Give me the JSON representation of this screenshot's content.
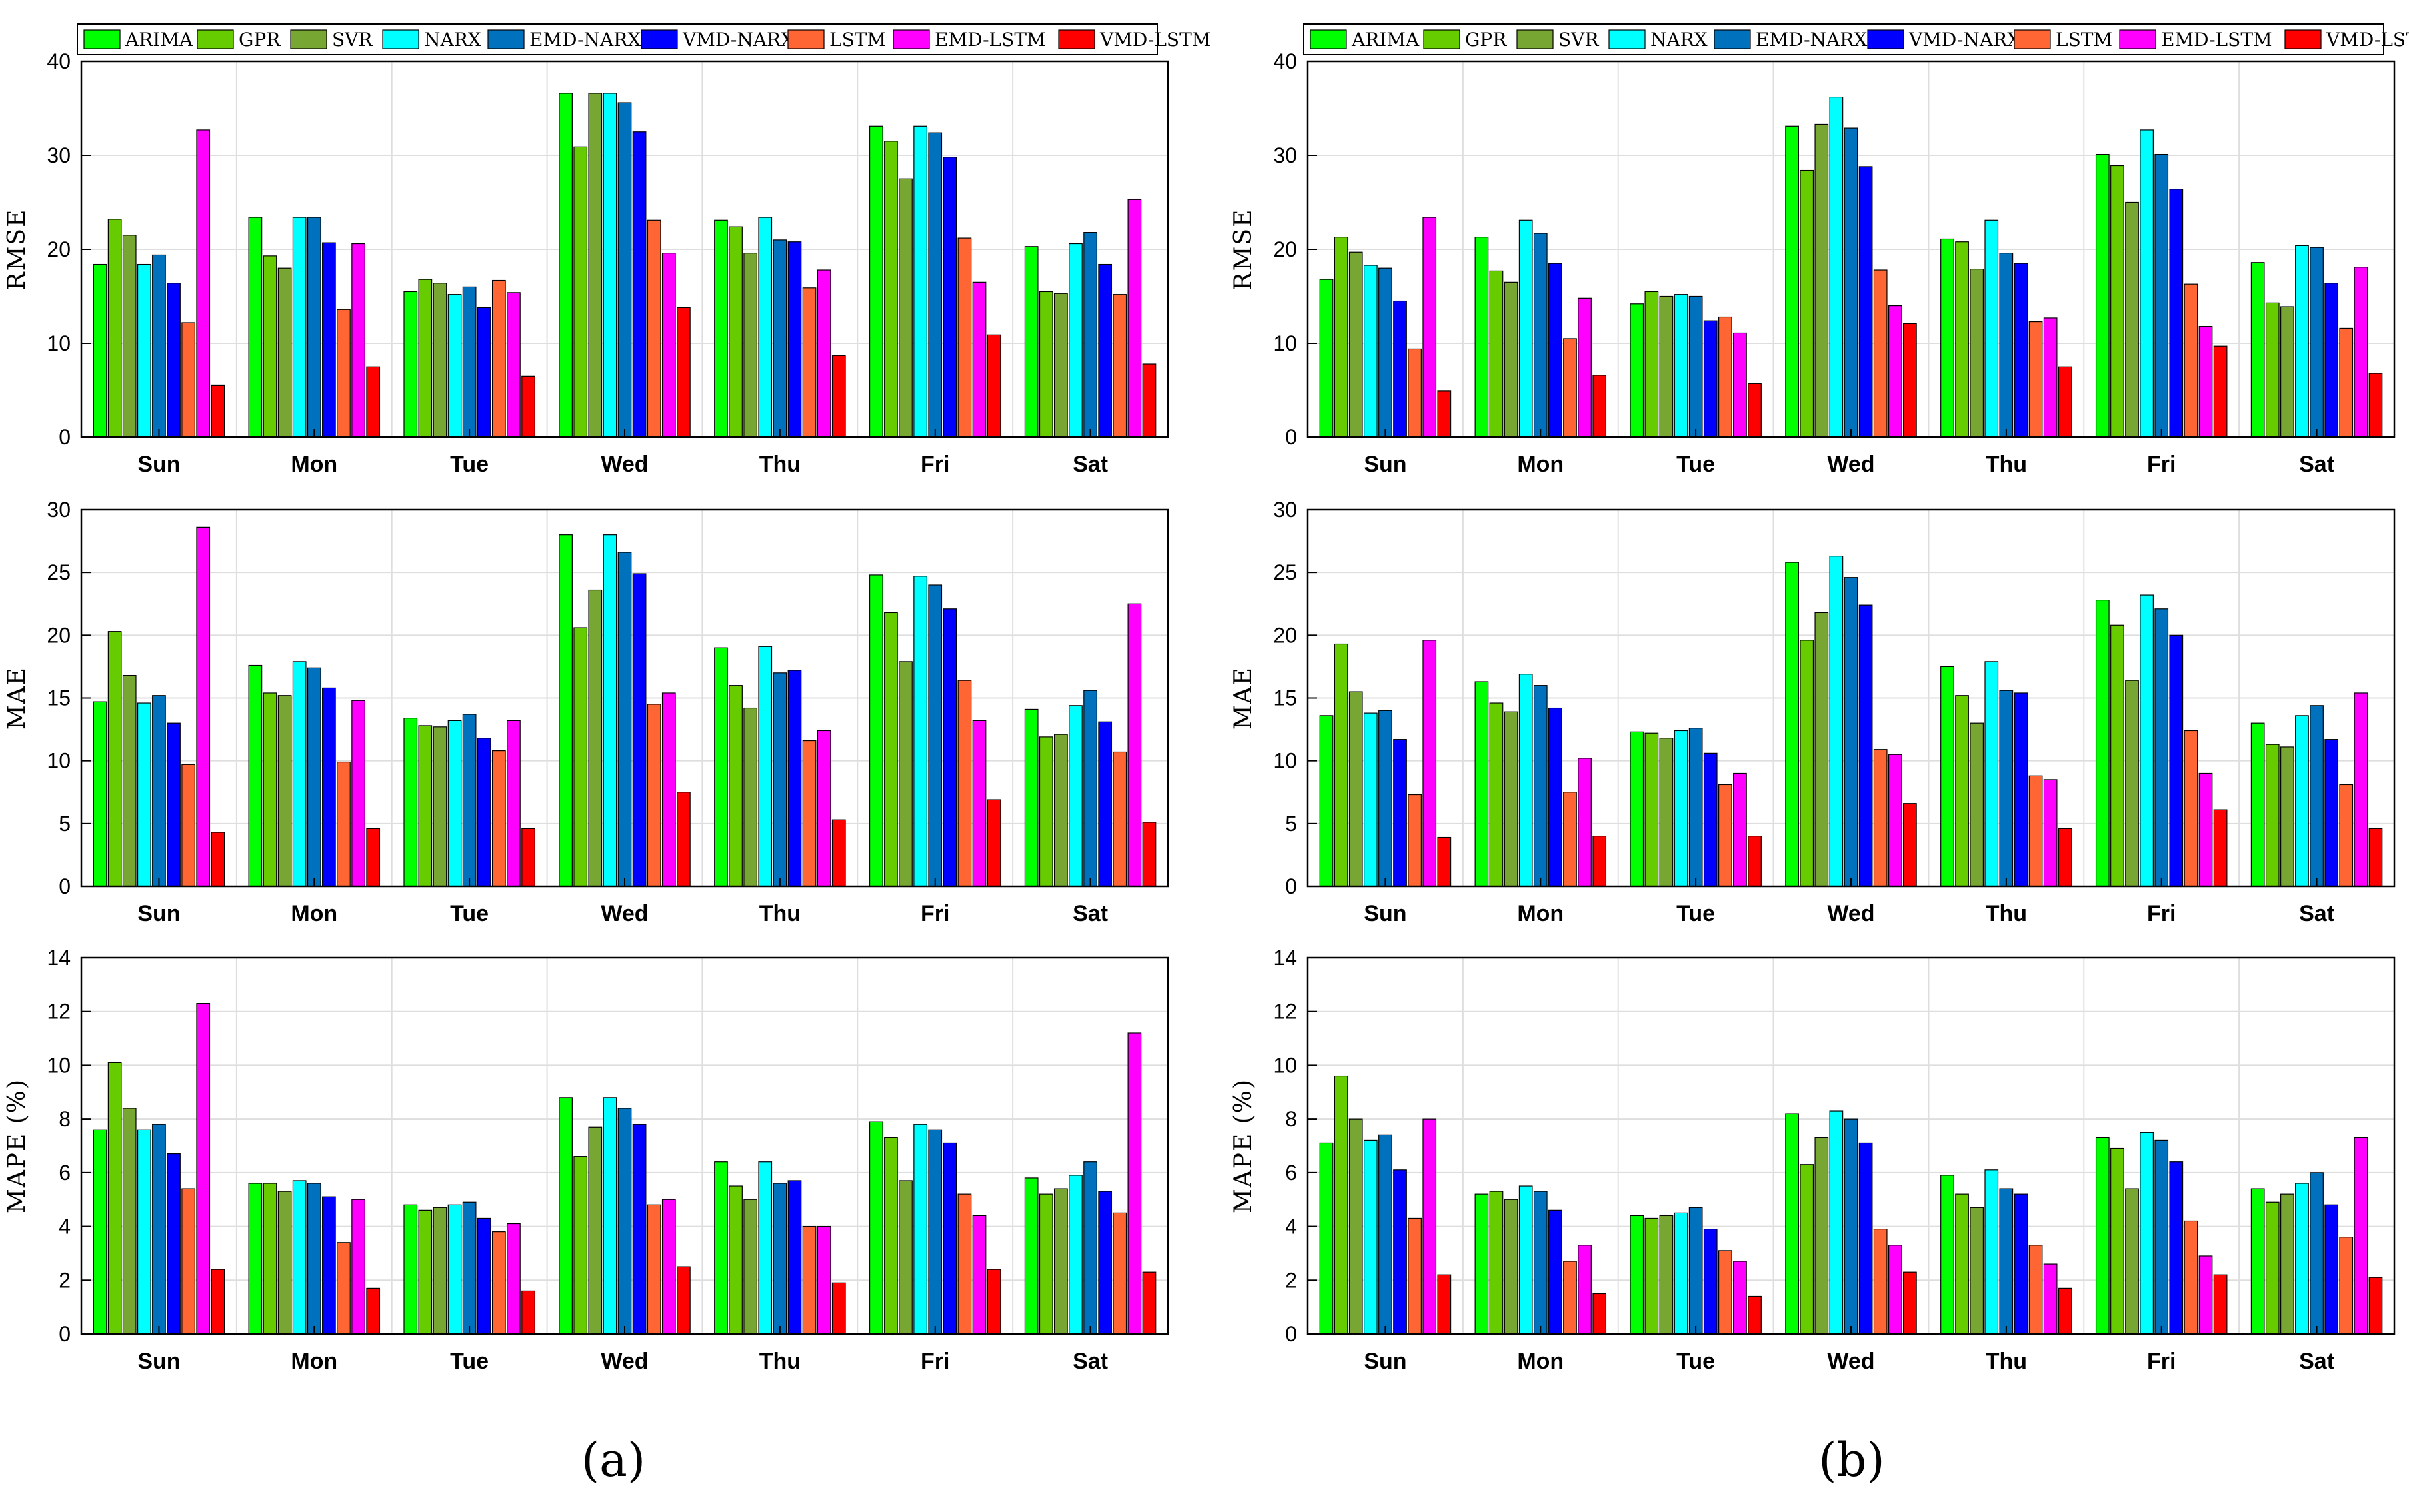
{
  "legend": {
    "entries": [
      "ARIMA",
      "GPR",
      "SVR",
      "NARX",
      "EMD-NARX",
      "VMD-NARX",
      "LSTM",
      "EMD-LSTM",
      "VMD-LSTM"
    ],
    "colors": [
      "#00ff00",
      "#66cc00",
      "#77a633",
      "#00ffff",
      "#0072bd",
      "#0000ff",
      "#ff6633",
      "#ff00ff",
      "#ff0000"
    ]
  },
  "panel_labels": [
    "(a)",
    "(b)"
  ],
  "chart_data": [
    {
      "panel": "a",
      "metric": "RMSE",
      "type": "bar",
      "ylabel": "RMSE",
      "ylim": [
        0,
        40
      ],
      "yticks": [
        0,
        10,
        20,
        30,
        40
      ],
      "grid": true,
      "legend_position": "top",
      "categories": [
        "Sun",
        "Mon",
        "Tue",
        "Wed",
        "Thu",
        "Fri",
        "Sat"
      ],
      "series": [
        {
          "name": "ARIMA",
          "values": [
            18.4,
            23.4,
            15.5,
            36.6,
            23.1,
            33.1,
            20.3
          ]
        },
        {
          "name": "GPR",
          "values": [
            23.2,
            19.3,
            16.8,
            30.9,
            22.4,
            31.5,
            15.5
          ]
        },
        {
          "name": "SVR",
          "values": [
            21.5,
            18.0,
            16.4,
            36.6,
            19.6,
            27.5,
            15.3
          ]
        },
        {
          "name": "NARX",
          "values": [
            18.4,
            23.4,
            15.2,
            36.6,
            23.4,
            33.1,
            20.6
          ]
        },
        {
          "name": "EMD-NARX",
          "values": [
            19.4,
            23.4,
            16.0,
            35.6,
            21.0,
            32.4,
            21.8
          ]
        },
        {
          "name": "VMD-NARX",
          "values": [
            16.4,
            20.7,
            13.8,
            32.5,
            20.8,
            29.8,
            18.4
          ]
        },
        {
          "name": "LSTM",
          "values": [
            12.2,
            13.6,
            16.7,
            23.1,
            15.9,
            21.2,
            15.2
          ]
        },
        {
          "name": "EMD-LSTM",
          "values": [
            32.7,
            20.6,
            15.4,
            19.6,
            17.8,
            16.5,
            25.3
          ]
        },
        {
          "name": "VMD-LSTM",
          "values": [
            5.5,
            7.5,
            6.5,
            13.8,
            8.7,
            10.9,
            7.8
          ]
        }
      ]
    },
    {
      "panel": "a",
      "metric": "MAE",
      "type": "bar",
      "ylabel": "MAE",
      "ylim": [
        0,
        30
      ],
      "yticks": [
        0,
        5,
        10,
        15,
        20,
        25,
        30
      ],
      "grid": true,
      "categories": [
        "Sun",
        "Mon",
        "Tue",
        "Wed",
        "Thu",
        "Fri",
        "Sat"
      ],
      "series": [
        {
          "name": "ARIMA",
          "values": [
            14.7,
            17.6,
            13.4,
            28.0,
            19.0,
            24.8,
            14.1
          ]
        },
        {
          "name": "GPR",
          "values": [
            20.3,
            15.4,
            12.8,
            20.6,
            16.0,
            21.8,
            11.9
          ]
        },
        {
          "name": "SVR",
          "values": [
            16.8,
            15.2,
            12.7,
            23.6,
            14.2,
            17.9,
            12.1
          ]
        },
        {
          "name": "NARX",
          "values": [
            14.6,
            17.9,
            13.2,
            28.0,
            19.1,
            24.7,
            14.4
          ]
        },
        {
          "name": "EMD-NARX",
          "values": [
            15.2,
            17.4,
            13.7,
            26.6,
            17.0,
            24.0,
            15.6
          ]
        },
        {
          "name": "VMD-NARX",
          "values": [
            13.0,
            15.8,
            11.8,
            24.9,
            17.2,
            22.1,
            13.1
          ]
        },
        {
          "name": "LSTM",
          "values": [
            9.7,
            9.9,
            10.8,
            14.5,
            11.6,
            16.4,
            10.7
          ]
        },
        {
          "name": "EMD-LSTM",
          "values": [
            28.6,
            14.8,
            13.2,
            15.4,
            12.4,
            13.2,
            22.5
          ]
        },
        {
          "name": "VMD-LSTM",
          "values": [
            4.3,
            4.6,
            4.6,
            7.5,
            5.3,
            6.9,
            5.1
          ]
        }
      ]
    },
    {
      "panel": "a",
      "metric": "MAPE",
      "type": "bar",
      "ylabel": "MAPE (%)",
      "ylim": [
        0,
        14
      ],
      "yticks": [
        0,
        2,
        4,
        6,
        8,
        10,
        12,
        14
      ],
      "grid": true,
      "categories": [
        "Sun",
        "Mon",
        "Tue",
        "Wed",
        "Thu",
        "Fri",
        "Sat"
      ],
      "series": [
        {
          "name": "ARIMA",
          "values": [
            7.6,
            5.6,
            4.8,
            8.8,
            6.4,
            7.9,
            5.8
          ]
        },
        {
          "name": "GPR",
          "values": [
            10.1,
            5.6,
            4.6,
            6.6,
            5.5,
            7.3,
            5.2
          ]
        },
        {
          "name": "SVR",
          "values": [
            8.4,
            5.3,
            4.7,
            7.7,
            5.0,
            5.7,
            5.4
          ]
        },
        {
          "name": "NARX",
          "values": [
            7.6,
            5.7,
            4.8,
            8.8,
            6.4,
            7.8,
            5.9
          ]
        },
        {
          "name": "EMD-NARX",
          "values": [
            7.8,
            5.6,
            4.9,
            8.4,
            5.6,
            7.6,
            6.4
          ]
        },
        {
          "name": "VMD-NARX",
          "values": [
            6.7,
            5.1,
            4.3,
            7.8,
            5.7,
            7.1,
            5.3
          ]
        },
        {
          "name": "LSTM",
          "values": [
            5.4,
            3.4,
            3.8,
            4.8,
            4.0,
            5.2,
            4.5
          ]
        },
        {
          "name": "EMD-LSTM",
          "values": [
            12.3,
            5.0,
            4.1,
            5.0,
            4.0,
            4.4,
            11.2
          ]
        },
        {
          "name": "VMD-LSTM",
          "values": [
            2.4,
            1.7,
            1.6,
            2.5,
            1.9,
            2.4,
            2.3
          ]
        }
      ]
    },
    {
      "panel": "b",
      "metric": "RMSE",
      "type": "bar",
      "ylabel": "RMSE",
      "ylim": [
        0,
        40
      ],
      "yticks": [
        0,
        10,
        20,
        30,
        40
      ],
      "grid": true,
      "legend_position": "top",
      "categories": [
        "Sun",
        "Mon",
        "Tue",
        "Wed",
        "Thu",
        "Fri",
        "Sat"
      ],
      "series": [
        {
          "name": "ARIMA",
          "values": [
            16.8,
            21.3,
            14.2,
            33.1,
            21.1,
            30.1,
            18.6
          ]
        },
        {
          "name": "GPR",
          "values": [
            21.3,
            17.7,
            15.5,
            28.4,
            20.8,
            28.9,
            14.3
          ]
        },
        {
          "name": "SVR",
          "values": [
            19.7,
            16.5,
            15.0,
            33.3,
            17.9,
            25.0,
            13.9
          ]
        },
        {
          "name": "NARX",
          "values": [
            18.3,
            23.1,
            15.2,
            36.2,
            23.1,
            32.7,
            20.4
          ]
        },
        {
          "name": "EMD-NARX",
          "values": [
            18.0,
            21.7,
            15.0,
            32.9,
            19.6,
            30.1,
            20.2
          ]
        },
        {
          "name": "VMD-NARX",
          "values": [
            14.5,
            18.5,
            12.4,
            28.8,
            18.5,
            26.4,
            16.4
          ]
        },
        {
          "name": "LSTM",
          "values": [
            9.4,
            10.5,
            12.8,
            17.8,
            12.3,
            16.3,
            11.6
          ]
        },
        {
          "name": "EMD-LSTM",
          "values": [
            23.4,
            14.8,
            11.1,
            14.0,
            12.7,
            11.8,
            18.1
          ]
        },
        {
          "name": "VMD-LSTM",
          "values": [
            4.9,
            6.6,
            5.7,
            12.1,
            7.5,
            9.7,
            6.8
          ]
        }
      ]
    },
    {
      "panel": "b",
      "metric": "MAE",
      "type": "bar",
      "ylabel": "MAE",
      "ylim": [
        0,
        30
      ],
      "yticks": [
        0,
        5,
        10,
        15,
        20,
        25,
        30
      ],
      "grid": true,
      "categories": [
        "Sun",
        "Mon",
        "Tue",
        "Wed",
        "Thu",
        "Fri",
        "Sat"
      ],
      "series": [
        {
          "name": "ARIMA",
          "values": [
            13.6,
            16.3,
            12.3,
            25.8,
            17.5,
            22.8,
            13.0
          ]
        },
        {
          "name": "GPR",
          "values": [
            19.3,
            14.6,
            12.2,
            19.6,
            15.2,
            20.8,
            11.3
          ]
        },
        {
          "name": "SVR",
          "values": [
            15.5,
            13.9,
            11.8,
            21.8,
            13.0,
            16.4,
            11.1
          ]
        },
        {
          "name": "NARX",
          "values": [
            13.8,
            16.9,
            12.4,
            26.3,
            17.9,
            23.2,
            13.6
          ]
        },
        {
          "name": "EMD-NARX",
          "values": [
            14.0,
            16.0,
            12.6,
            24.6,
            15.6,
            22.1,
            14.4
          ]
        },
        {
          "name": "VMD-NARX",
          "values": [
            11.7,
            14.2,
            10.6,
            22.4,
            15.4,
            20.0,
            11.7
          ]
        },
        {
          "name": "LSTM",
          "values": [
            7.3,
            7.5,
            8.1,
            10.9,
            8.8,
            12.4,
            8.1
          ]
        },
        {
          "name": "EMD-LSTM",
          "values": [
            19.6,
            10.2,
            9.0,
            10.5,
            8.5,
            9.0,
            15.4
          ]
        },
        {
          "name": "VMD-LSTM",
          "values": [
            3.9,
            4.0,
            4.0,
            6.6,
            4.6,
            6.1,
            4.6
          ]
        }
      ]
    },
    {
      "panel": "b",
      "metric": "MAPE",
      "type": "bar",
      "ylabel": "MAPE (%)",
      "ylim": [
        0,
        14
      ],
      "yticks": [
        0,
        2,
        4,
        6,
        8,
        10,
        12,
        14
      ],
      "grid": true,
      "categories": [
        "Sun",
        "Mon",
        "Tue",
        "Wed",
        "Thu",
        "Fri",
        "Sat"
      ],
      "series": [
        {
          "name": "ARIMA",
          "values": [
            7.1,
            5.2,
            4.4,
            8.2,
            5.9,
            7.3,
            5.4
          ]
        },
        {
          "name": "GPR",
          "values": [
            9.6,
            5.3,
            4.3,
            6.3,
            5.2,
            6.9,
            4.9
          ]
        },
        {
          "name": "SVR",
          "values": [
            8.0,
            5.0,
            4.4,
            7.3,
            4.7,
            5.4,
            5.2
          ]
        },
        {
          "name": "NARX",
          "values": [
            7.2,
            5.5,
            4.5,
            8.3,
            6.1,
            7.5,
            5.6
          ]
        },
        {
          "name": "EMD-NARX",
          "values": [
            7.4,
            5.3,
            4.7,
            8.0,
            5.4,
            7.2,
            6.0
          ]
        },
        {
          "name": "VMD-NARX",
          "values": [
            6.1,
            4.6,
            3.9,
            7.1,
            5.2,
            6.4,
            4.8
          ]
        },
        {
          "name": "LSTM",
          "values": [
            4.3,
            2.7,
            3.1,
            3.9,
            3.3,
            4.2,
            3.6
          ]
        },
        {
          "name": "EMD-LSTM",
          "values": [
            8.0,
            3.3,
            2.7,
            3.3,
            2.6,
            2.9,
            7.3
          ]
        },
        {
          "name": "VMD-LSTM",
          "values": [
            2.2,
            1.5,
            1.4,
            2.3,
            1.7,
            2.2,
            2.1
          ]
        }
      ]
    }
  ]
}
